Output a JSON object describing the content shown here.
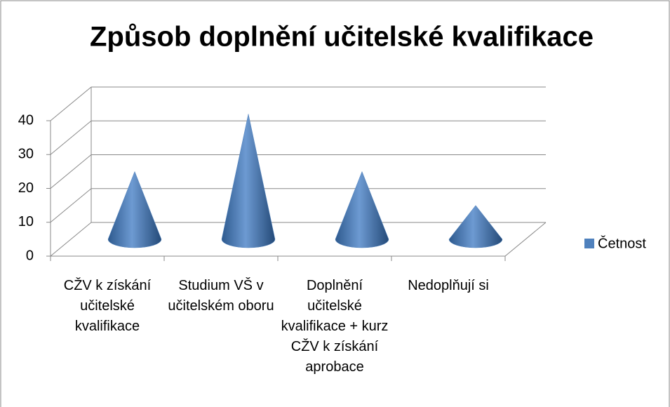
{
  "chart_data": {
    "type": "cone3d",
    "title": "Způsob doplnění učitelské kvalifikace",
    "categories": [
      "CŽV k získání učitelské kvalifikace",
      "Studium VŠ v učitelském oboru",
      "Doplnění učitelské kvalifikace + kurz CŽV k získání aprobace",
      "Nedoplňují si"
    ],
    "series": [
      {
        "name": "Četnost",
        "color": "#4f81bd",
        "values": [
          20,
          37,
          20,
          10
        ]
      }
    ],
    "ylim": [
      0,
      40
    ],
    "yticks": [
      0,
      10,
      20,
      30,
      40
    ],
    "grid": true,
    "legend": "right"
  }
}
